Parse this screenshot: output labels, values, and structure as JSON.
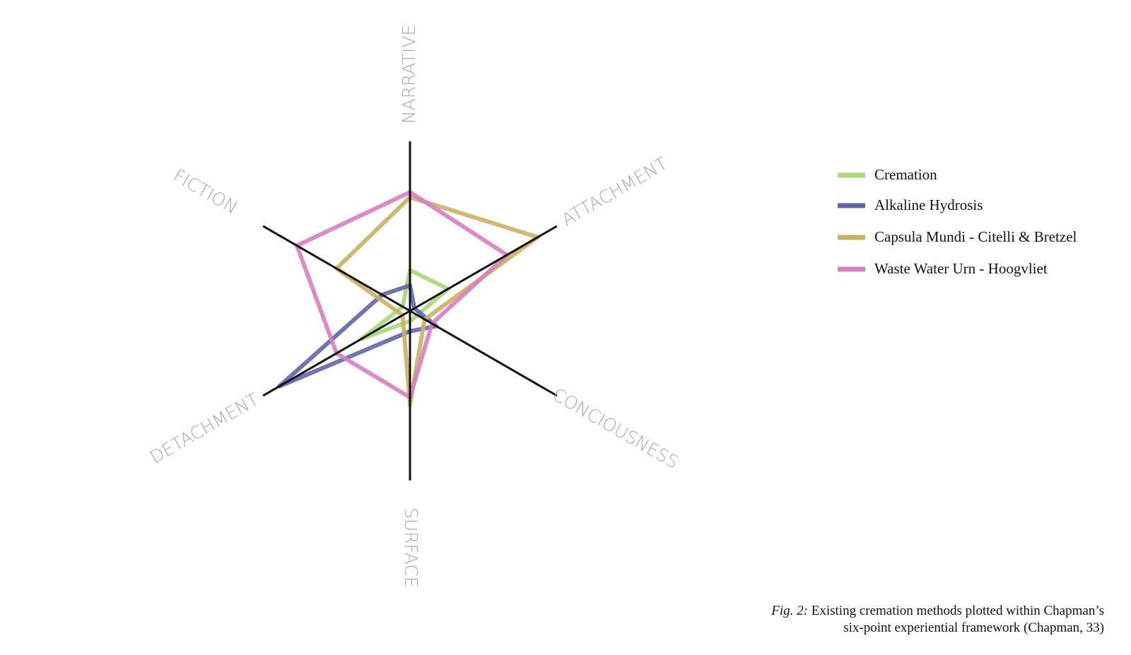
{
  "chart_data": {
    "type": "radar",
    "axes": [
      "NARRATIVE",
      "ATTACHMENT",
      "CONCIOUSNESS",
      "SURFACE",
      "DETACHMENT",
      "FICTION"
    ],
    "rlim": [
      0,
      10
    ],
    "series": [
      {
        "name": "Cremation",
        "color": "#a8d67a",
        "values": [
          2.4,
          2.6,
          0.5,
          0.6,
          3.3,
          0.5
        ]
      },
      {
        "name": "Alkaline Hydrosis",
        "color": "#6264ab",
        "values": [
          1.5,
          0.3,
          1.8,
          1.2,
          8.9,
          1.9
        ]
      },
      {
        "name": "Capsula Mundi - Citelli & Bretzel",
        "color": "#c9b063",
        "values": [
          6.7,
          8.7,
          1.0,
          5.5,
          0.5,
          5.0
        ]
      },
      {
        "name": "Waste Water Urn - Hoogvliet",
        "color": "#d77fc0",
        "values": [
          7.0,
          6.6,
          1.5,
          5.1,
          5.0,
          7.7
        ]
      }
    ],
    "caption_label": "Fig. 2:",
    "caption_lines": [
      "Existing cremation methods plotted within Chapman’s",
      "six-point experiential framework (Chapman, 33)"
    ]
  }
}
